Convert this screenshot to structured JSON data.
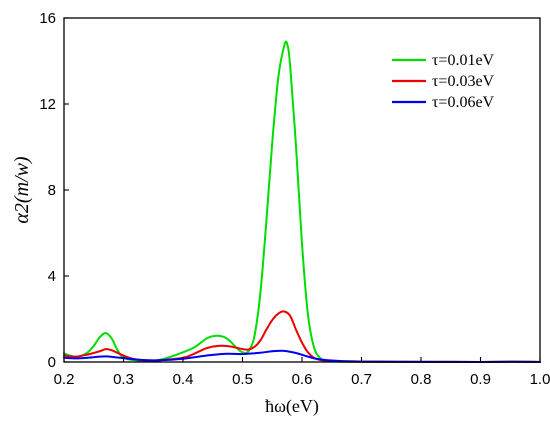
{
  "chart_data": {
    "type": "line",
    "xlabel": "ħω(eV)",
    "ylabel": "α2(m/w)",
    "xlim": [
      0.2,
      1.0
    ],
    "ylim": [
      0,
      16
    ],
    "x_ticks": [
      0.2,
      0.3,
      0.4,
      0.5,
      0.6,
      0.7,
      0.8,
      0.9,
      1.0
    ],
    "x_tick_labels": [
      "0.2",
      "0.3",
      "0.4",
      "0.5",
      "0.6",
      "0.7",
      "0.8",
      "0.9",
      "1.0"
    ],
    "y_ticks": [
      0,
      4,
      8,
      12,
      16
    ],
    "y_tick_labels": [
      "0",
      "4",
      "8",
      "12",
      "16"
    ],
    "grid": false,
    "legend_position": "top-right",
    "series": [
      {
        "name": "τ=0.01eV",
        "color": "#00dd00",
        "x": [
          0.2,
          0.21,
          0.22,
          0.23,
          0.24,
          0.25,
          0.26,
          0.27,
          0.28,
          0.29,
          0.3,
          0.32,
          0.34,
          0.36,
          0.38,
          0.4,
          0.42,
          0.43,
          0.44,
          0.45,
          0.46,
          0.47,
          0.48,
          0.49,
          0.5,
          0.51,
          0.52,
          0.53,
          0.54,
          0.55,
          0.56,
          0.57,
          0.575,
          0.58,
          0.59,
          0.6,
          0.61,
          0.62,
          0.63,
          0.64,
          0.66,
          0.7,
          0.8,
          0.9,
          1.0
        ],
        "y": [
          0.4,
          0.3,
          0.25,
          0.3,
          0.45,
          0.75,
          1.15,
          1.35,
          1.1,
          0.55,
          0.2,
          0.08,
          0.05,
          0.1,
          0.25,
          0.45,
          0.7,
          0.9,
          1.1,
          1.2,
          1.22,
          1.15,
          0.95,
          0.65,
          0.45,
          0.5,
          1.2,
          3.2,
          6.5,
          10.2,
          13.2,
          14.7,
          14.8,
          13.8,
          10.0,
          5.5,
          2.2,
          0.7,
          0.2,
          0.06,
          0.02,
          0.01,
          0.0,
          0.0,
          0.0
        ]
      },
      {
        "name": "τ=0.03eV",
        "color": "#ee0000",
        "x": [
          0.2,
          0.22,
          0.24,
          0.26,
          0.27,
          0.28,
          0.3,
          0.32,
          0.35,
          0.4,
          0.42,
          0.44,
          0.46,
          0.48,
          0.5,
          0.51,
          0.52,
          0.53,
          0.54,
          0.55,
          0.56,
          0.57,
          0.58,
          0.59,
          0.6,
          0.61,
          0.62,
          0.63,
          0.65,
          0.7,
          0.8,
          0.9,
          1.0
        ],
        "y": [
          0.3,
          0.25,
          0.35,
          0.5,
          0.6,
          0.55,
          0.3,
          0.12,
          0.06,
          0.2,
          0.4,
          0.65,
          0.75,
          0.72,
          0.6,
          0.58,
          0.7,
          1.0,
          1.5,
          1.95,
          2.25,
          2.35,
          2.15,
          1.5,
          0.9,
          0.45,
          0.2,
          0.1,
          0.04,
          0.01,
          0.0,
          0.0,
          0.0
        ]
      },
      {
        "name": "τ=0.06eV",
        "color": "#0000ee",
        "x": [
          0.2,
          0.22,
          0.24,
          0.26,
          0.27,
          0.28,
          0.3,
          0.33,
          0.36,
          0.4,
          0.44,
          0.47,
          0.5,
          0.53,
          0.55,
          0.57,
          0.59,
          0.61,
          0.63,
          0.66,
          0.7,
          0.8,
          0.9,
          1.0
        ],
        "y": [
          0.2,
          0.17,
          0.2,
          0.25,
          0.26,
          0.24,
          0.18,
          0.1,
          0.08,
          0.15,
          0.3,
          0.38,
          0.37,
          0.43,
          0.5,
          0.52,
          0.42,
          0.25,
          0.12,
          0.05,
          0.02,
          0.01,
          0.0,
          0.0
        ]
      }
    ]
  }
}
